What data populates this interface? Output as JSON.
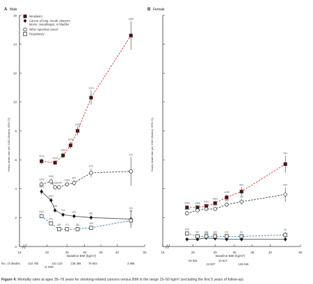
{
  "caption": {
    "prefix": "Figure 4: ",
    "text": "Mortality rates at ages 35–79 years for smoking-related cancers versus BMI in the range 15–50 kg/m² (excluding the first 5 years of follow-up)"
  },
  "colors": {
    "neoplasm": "#d42a2a",
    "upper": "#333333",
    "unspecified": "#555555",
    "respiratory": "#2a7ab8"
  },
  "chart_data": [
    {
      "type": "line",
      "panel_label": "A",
      "title": "Male",
      "ylabel": "Yearly death rate per 1000 (floated, 95% CI)",
      "xlabel": "Baseline BMI (kg/m²)",
      "y_ticks": [
        "0",
        "2",
        "4",
        "6",
        "8",
        "10",
        "12",
        "14",
        "16"
      ],
      "ylim": [
        0,
        16
      ],
      "x_ticks": [
        "15",
        "20",
        "25",
        "30",
        "35",
        "40",
        "50"
      ],
      "x_tick_values": [
        15,
        20,
        25,
        30,
        35,
        40,
        50
      ],
      "xlim": [
        15,
        50
      ],
      "count_row_label": "No. of deaths",
      "counts": [
        {
          "x": 17.5,
          "text": "216 760"
        },
        {
          "x": 22.5,
          "text": "151 123"
        },
        {
          "x": 20.5,
          "text": ">1 000*"
        },
        {
          "x": 27.5,
          "text": "136 466"
        },
        {
          "x": 32.5,
          "text": "79 603"
        },
        {
          "x": 45,
          "text": "3 986"
        }
      ],
      "legend": [
        {
          "key": "neoplasm",
          "label": "Neoplasm"
        },
        {
          "key": "upper",
          "label": "Cancer of lung, mouth, pharynx, larynx, oesophagus, or bladder"
        },
        {
          "key": "unspecified",
          "label": "Other specified cancer"
        },
        {
          "key": "respiratory",
          "label": "Respiratory"
        }
      ],
      "series": [
        {
          "key": "neoplasm",
          "marker": "square",
          "dash": true,
          "x": [
            19,
            22,
            24,
            26,
            28,
            32,
            45
          ],
          "y": [
            5.9,
            5.8,
            6.3,
            7.0,
            8.0,
            10.3,
            14.6
          ],
          "err": [
            0.2,
            0.15,
            0.2,
            0.25,
            0.3,
            0.5,
            1.0
          ],
          "labels": [
            "2131",
            "2040",
            "1893",
            "1425",
            "1168",
            "1210",
            "1098"
          ]
        },
        {
          "key": "upper",
          "marker": "open-circle",
          "dash": true,
          "x": [
            19,
            21,
            22,
            23,
            25,
            27,
            32,
            45
          ],
          "y": [
            4.3,
            4.5,
            4.1,
            4.1,
            4.3,
            4.4,
            5.1,
            5.2
          ],
          "err": [
            0.2,
            0.2,
            0.15,
            0.15,
            0.15,
            0.2,
            0.3,
            1.0
          ],
          "labels": [
            "1208",
            "1284",
            "1151",
            "1245",
            "1184",
            "947",
            "879",
            "310"
          ]
        },
        {
          "key": "unspecified",
          "marker": "diamond",
          "dash": false,
          "x": [
            19,
            21,
            22,
            24,
            27,
            32,
            45
          ],
          "y": [
            3.8,
            3.2,
            2.5,
            2.2,
            2.1,
            2.0,
            1.9
          ],
          "err": [
            0.2,
            0.15,
            0.12,
            0.12,
            0.12,
            0.15,
            0.6
          ],
          "labels": [
            "2193",
            "1921",
            "868",
            "724",
            "616",
            "481",
            "151"
          ]
        },
        {
          "key": "respiratory",
          "marker": "open-square",
          "dash": true,
          "x": [
            19,
            21,
            23,
            25,
            28,
            32,
            45
          ],
          "y": [
            2.1,
            1.6,
            1.2,
            1.2,
            1.2,
            1.3,
            1.8
          ],
          "err": [
            0.15,
            0.1,
            0.1,
            0.1,
            0.1,
            0.1,
            0.5
          ],
          "labels": [
            "4411",
            "870",
            "485",
            "471",
            "352",
            "159",
            "93"
          ]
        }
      ]
    },
    {
      "type": "line",
      "panel_label": "B",
      "title": "Female",
      "ylabel": "Yearly death rate per 1000 (floated, 95% CI)",
      "xlabel": "Baseline BMI (kg/m²)",
      "x_ticks": [
        "15",
        "20",
        "25",
        "30",
        "35",
        "40",
        "50"
      ],
      "x_tick_values": [
        15,
        20,
        25,
        30,
        35,
        40,
        50
      ],
      "xlim": [
        15,
        50
      ],
      "ylim": [
        0,
        16
      ],
      "counts": [
        {
          "x": 20,
          "text": "82 981"
        },
        {
          "x": 24,
          "text": "24 807"
        },
        {
          "x": 27,
          "text": "10 917"
        },
        {
          "x": 32.5,
          "text": "126 646"
        }
      ],
      "series": [
        {
          "key": "neoplasm",
          "marker": "square",
          "dash": true,
          "x": [
            19,
            21,
            23,
            25,
            28,
            32,
            45
          ],
          "y": [
            2.7,
            2.7,
            2.8,
            3.0,
            3.4,
            3.8,
            5.7
          ],
          "err": [
            0.15,
            0.12,
            0.12,
            0.15,
            0.2,
            0.3,
            0.6
          ],
          "labels": [
            "4406",
            "1968",
            "1931",
            "1584",
            "1298",
            "909",
            "354"
          ]
        },
        {
          "key": "upper",
          "marker": "open-circle",
          "dash": true,
          "x": [
            19,
            21,
            23,
            25,
            28,
            32,
            45
          ],
          "y": [
            2.3,
            2.5,
            2.6,
            2.6,
            2.9,
            3.1,
            3.6
          ],
          "err": [
            0.15,
            0.12,
            0.12,
            0.12,
            0.15,
            0.2,
            0.5
          ],
          "labels": [
            "1183",
            "1191",
            "1104",
            "1069",
            "945",
            "753",
            "290"
          ]
        },
        {
          "key": "unspecified",
          "marker": "diamond",
          "dash": false,
          "x": [
            19,
            21,
            23,
            25,
            28,
            32,
            45
          ],
          "y": [
            0.5,
            0.5,
            0.6,
            0.55,
            0.5,
            0.5,
            0.5
          ],
          "err": [
            0.05,
            0.05,
            0.05,
            0.05,
            0.05,
            0.06,
            0.15
          ],
          "labels": [
            "486",
            "349",
            "309",
            "204",
            "210",
            "152",
            "38"
          ]
        },
        {
          "key": "respiratory",
          "marker": "open-square",
          "dash": true,
          "x": [
            19,
            21,
            23,
            25,
            28,
            32,
            45
          ],
          "y": [
            0.9,
            0.7,
            0.7,
            0.7,
            0.7,
            0.7,
            0.8
          ],
          "err": [
            0.08,
            0.06,
            0.05,
            0.05,
            0.05,
            0.06,
            0.2
          ],
          "labels": [
            "1031",
            "367",
            "268",
            "160",
            "121",
            "81",
            "33"
          ]
        }
      ]
    }
  ]
}
